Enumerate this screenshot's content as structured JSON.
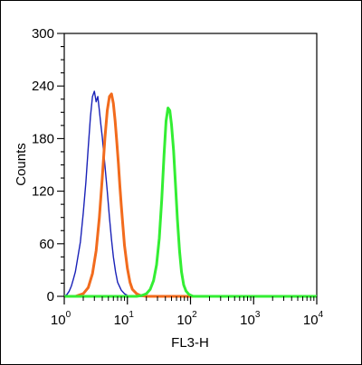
{
  "chart_data": {
    "type": "line",
    "title": "",
    "xlabel": "FL3-H",
    "ylabel": "Counts",
    "x_scale": "log",
    "xlim": [
      1,
      10000
    ],
    "ylim": [
      0,
      300
    ],
    "x_ticks": [
      {
        "base": "10",
        "exp": "0",
        "value": 1
      },
      {
        "base": "10",
        "exp": "1",
        "value": 10
      },
      {
        "base": "10",
        "exp": "2",
        "value": 100
      },
      {
        "base": "10",
        "exp": "3",
        "value": 1000
      },
      {
        "base": "10",
        "exp": "4",
        "value": 10000
      }
    ],
    "y_ticks": [
      {
        "label": "0",
        "value": 0
      },
      {
        "label": "60",
        "value": 60
      },
      {
        "label": "120",
        "value": 120
      },
      {
        "label": "180",
        "value": 180
      },
      {
        "label": "240",
        "value": 240
      },
      {
        "label": "300",
        "value": 300
      }
    ],
    "grid": false,
    "legend": "none",
    "series": [
      {
        "color": "#1a22b8",
        "points": [
          [
            1,
            0
          ],
          [
            1.1,
            2
          ],
          [
            1.2,
            6
          ],
          [
            1.3,
            12
          ],
          [
            1.4,
            20
          ],
          [
            1.5,
            28
          ],
          [
            1.6,
            40
          ],
          [
            1.8,
            62
          ],
          [
            2.0,
            95
          ],
          [
            2.2,
            130
          ],
          [
            2.4,
            170
          ],
          [
            2.6,
            205
          ],
          [
            2.8,
            228
          ],
          [
            3.0,
            234
          ],
          [
            3.2,
            222
          ],
          [
            3.4,
            228
          ],
          [
            3.6,
            212
          ],
          [
            3.8,
            196
          ],
          [
            4.0,
            182
          ],
          [
            4.4,
            150
          ],
          [
            4.8,
            120
          ],
          [
            5.2,
            90
          ],
          [
            5.6,
            65
          ],
          [
            6.0,
            45
          ],
          [
            6.5,
            28
          ],
          [
            7.0,
            16
          ],
          [
            8.0,
            7
          ],
          [
            9.0,
            3
          ],
          [
            10,
            1
          ],
          [
            14,
            0
          ],
          [
            10000,
            0
          ]
        ]
      },
      {
        "color": "#f26b1d",
        "points": [
          [
            1,
            0
          ],
          [
            1.5,
            0
          ],
          [
            2.0,
            3
          ],
          [
            2.4,
            10
          ],
          [
            2.8,
            26
          ],
          [
            3.2,
            52
          ],
          [
            3.6,
            90
          ],
          [
            4.0,
            135
          ],
          [
            4.4,
            180
          ],
          [
            4.8,
            212
          ],
          [
            5.2,
            228
          ],
          [
            5.6,
            231
          ],
          [
            6.0,
            220
          ],
          [
            6.4,
            200
          ],
          [
            6.8,
            176
          ],
          [
            7.2,
            152
          ],
          [
            7.6,
            126
          ],
          [
            8.0,
            104
          ],
          [
            8.5,
            80
          ],
          [
            9.0,
            58
          ],
          [
            10,
            32
          ],
          [
            11,
            16
          ],
          [
            12,
            8
          ],
          [
            14,
            3
          ],
          [
            16,
            1
          ],
          [
            20,
            0
          ],
          [
            10000,
            0
          ]
        ]
      },
      {
        "color": "#33ee33",
        "points": [
          [
            1,
            0
          ],
          [
            14,
            0
          ],
          [
            17,
            1
          ],
          [
            20,
            3
          ],
          [
            23,
            8
          ],
          [
            26,
            18
          ],
          [
            29,
            36
          ],
          [
            32,
            66
          ],
          [
            35,
            110
          ],
          [
            38,
            160
          ],
          [
            41,
            200
          ],
          [
            44,
            215
          ],
          [
            47,
            212
          ],
          [
            50,
            196
          ],
          [
            54,
            166
          ],
          [
            58,
            126
          ],
          [
            62,
            88
          ],
          [
            67,
            52
          ],
          [
            72,
            28
          ],
          [
            78,
            13
          ],
          [
            85,
            6
          ],
          [
            95,
            2
          ],
          [
            110,
            0
          ],
          [
            10000,
            0
          ]
        ]
      }
    ]
  }
}
